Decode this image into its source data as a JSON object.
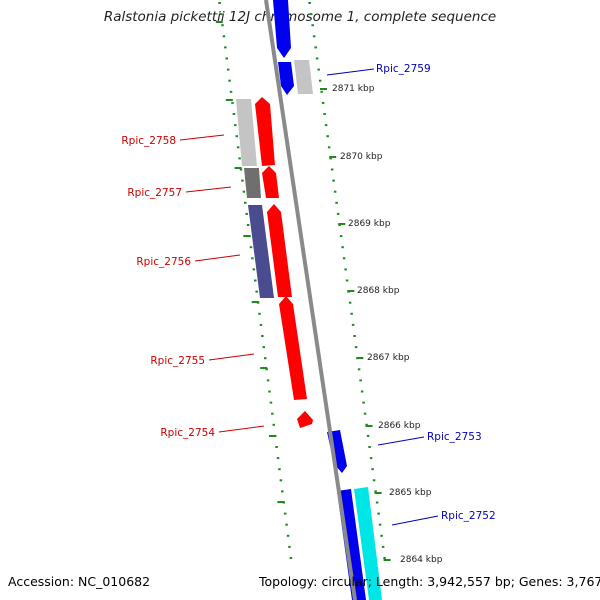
{
  "title": "Ralstonia pickettii 12J chromosome 1, complete sequence",
  "footer": {
    "accession": "Accession: NC_010682",
    "summary": "Topology: circular; Length: 3,942,557 bp; Genes: 3,767"
  },
  "colors": {
    "backbone": "#8a8a8a",
    "tick": "#1f8a1f",
    "forward_label": "#cc0000",
    "reverse_label": "#0000bb",
    "red_gene": "#ff0000",
    "blue_gene": "#0000ee",
    "cyan_gene": "#00e6e6",
    "light_gray": "#c4c4c4",
    "dark_gray": "#6f6f6f",
    "slate": "#4b4b8f"
  },
  "scale_labels": [
    {
      "label": "2871 kbp",
      "kbp": 2871
    },
    {
      "label": "2870 kbp",
      "kbp": 2870
    },
    {
      "label": "2869 kbp",
      "kbp": 2869
    },
    {
      "label": "2868 kbp",
      "kbp": 2868
    },
    {
      "label": "2867 kbp",
      "kbp": 2867
    },
    {
      "label": "2866 kbp",
      "kbp": 2866
    },
    {
      "label": "2865 kbp",
      "kbp": 2865
    },
    {
      "label": "2864 kbp",
      "kbp": 2864
    }
  ],
  "gene_labels": [
    {
      "label": "Rpic_2759",
      "strand": "reverse"
    },
    {
      "label": "Rpic_2758",
      "strand": "forward"
    },
    {
      "label": "Rpic_2757",
      "strand": "forward"
    },
    {
      "label": "Rpic_2756",
      "strand": "forward"
    },
    {
      "label": "Rpic_2755",
      "strand": "forward"
    },
    {
      "label": "Rpic_2754",
      "strand": "forward"
    },
    {
      "label": "Rpic_2753",
      "strand": "reverse"
    },
    {
      "label": "Rpic_2752",
      "strand": "reverse"
    }
  ]
}
